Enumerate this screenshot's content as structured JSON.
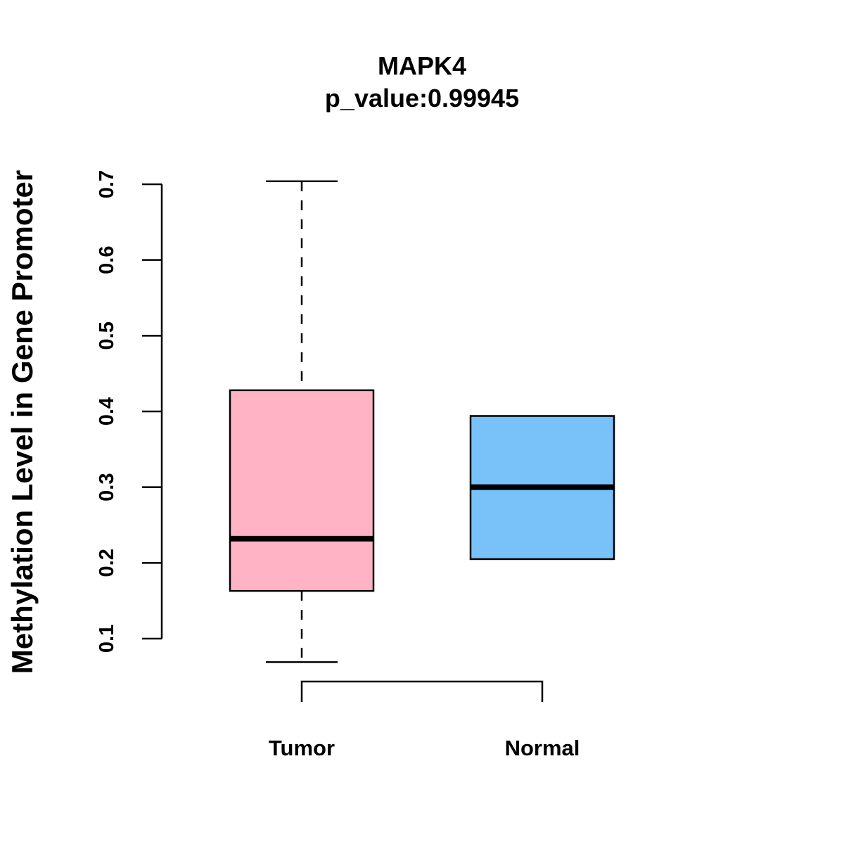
{
  "chart_data": {
    "type": "boxplot",
    "title": "MAPK4",
    "subtitle": "p_value:0.99945",
    "xlabel": "",
    "ylabel": "Methylation Level in Gene Promoter",
    "ylim": [
      0.1,
      0.7
    ],
    "yticks": [
      "0.1",
      "0.2",
      "0.3",
      "0.4",
      "0.5",
      "0.6",
      "0.7"
    ],
    "categories": [
      "Tumor",
      "Normal"
    ],
    "series": [
      {
        "name": "Tumor",
        "color": "#FFB3C5",
        "min": 0.069,
        "q1": 0.163,
        "median": 0.232,
        "q3": 0.428,
        "max": 0.704
      },
      {
        "name": "Normal",
        "color": "#79C2F9",
        "min": 0.205,
        "q1": 0.205,
        "median": 0.3,
        "q3": 0.394,
        "max": 0.394
      }
    ],
    "comparison_bracket": [
      "Tumor",
      "Normal"
    ],
    "grid": false,
    "legend": "none"
  }
}
